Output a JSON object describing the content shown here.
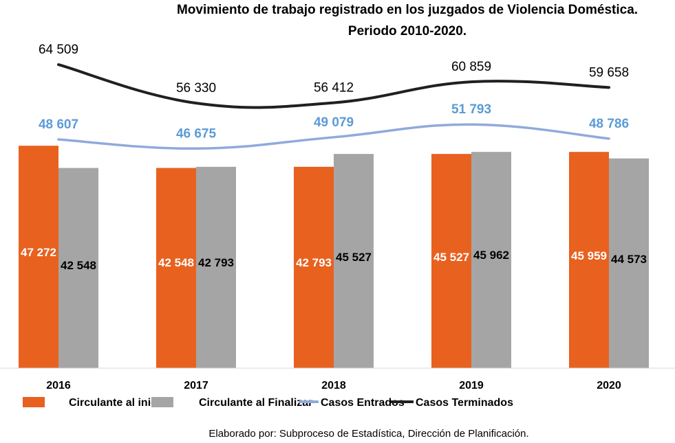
{
  "chart_data": {
    "type": "bar",
    "title": "Movimiento de trabajo registrado en los juzgados de Violencia Doméstica.",
    "subtitle": "Periodo 2010-2020.",
    "categories": [
      "2016",
      "2017",
      "2018",
      "2019",
      "2020"
    ],
    "series": [
      {
        "name": "Circulante al iniciar",
        "type": "bar",
        "color": "#E8611F",
        "label_color": "#FFFFFF",
        "values": [
          47272,
          42548,
          42793,
          45527,
          45959
        ],
        "labels": [
          "47 272",
          "42 548",
          "42 793",
          "45 527",
          "45 959"
        ]
      },
      {
        "name": "Circulante al Finalizar",
        "type": "bar",
        "color": "#A5A5A5",
        "label_color": "#000000",
        "values": [
          42548,
          42793,
          45527,
          45962,
          44573
        ],
        "labels": [
          "42 548",
          "42 793",
          "45 527",
          "45 962",
          "44 573"
        ]
      },
      {
        "name": "Casos Entrados",
        "type": "line",
        "color": "#8FAADC",
        "label_color": "#5B9BD5",
        "values": [
          48607,
          46675,
          49079,
          51793,
          48786
        ],
        "labels": [
          "48 607",
          "46 675",
          "49 079",
          "51 793",
          "48 786"
        ]
      },
      {
        "name": "Casos Terminados",
        "type": "line",
        "color": "#1F1F24",
        "label_color": "#000000",
        "values": [
          64509,
          56330,
          56412,
          60859,
          59658
        ],
        "labels": [
          "64 509",
          "56 330",
          "56 412",
          "60 859",
          "59 658"
        ]
      }
    ],
    "xlabel": "",
    "ylabel": "",
    "ylim": [
      0,
      78000
    ],
    "grid": false,
    "legend": "bottom",
    "source": "Elaborado por: Subproceso de Estadística, Dirección de Planificación."
  }
}
